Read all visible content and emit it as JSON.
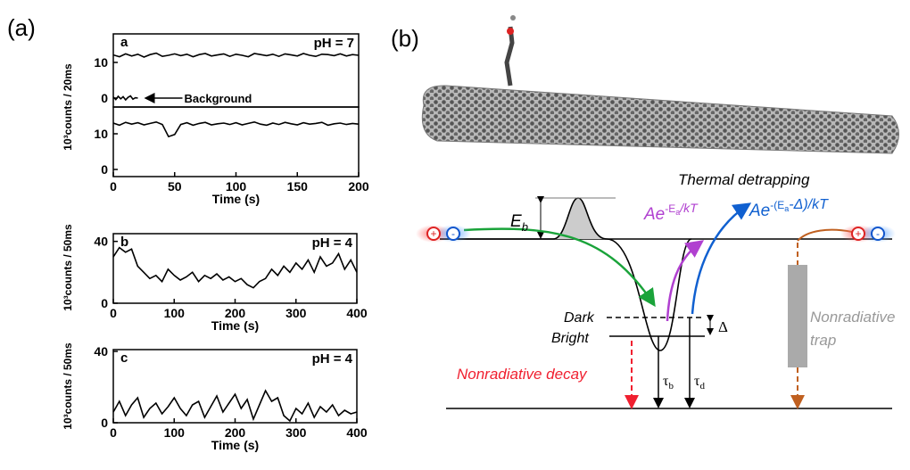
{
  "panel_labels": [
    "(a)",
    "(b)"
  ],
  "chart_data": [
    {
      "type": "line",
      "label": "a",
      "annotation": "pH = 7",
      "ylabel": "10³counts / 20ms",
      "xlim": [
        0,
        200
      ],
      "ylim": [
        -2.5,
        18
      ],
      "yticks": [
        0,
        10
      ],
      "series": [
        {
          "color": "#000000",
          "x": [
            0,
            5,
            10,
            15,
            20,
            25,
            30,
            35,
            40,
            45,
            50,
            55,
            60,
            65,
            70,
            75,
            80,
            85,
            90,
            95,
            100,
            105,
            110,
            115,
            120,
            125,
            130,
            135,
            140,
            145,
            150,
            155,
            160,
            165,
            170,
            175,
            180,
            185,
            190,
            195,
            200
          ],
          "values": [
            12.1,
            11.6,
            12.4,
            11.8,
            12.3,
            11.5,
            12.2,
            12.6,
            11.7,
            12.0,
            12.4,
            11.9,
            12.3,
            11.6,
            12.2,
            12.5,
            11.8,
            12.1,
            12.4,
            11.7,
            12.3,
            12.0,
            11.6,
            12.5,
            12.2,
            11.9,
            12.3,
            11.7,
            12.4,
            12.1,
            11.8,
            12.5,
            12.0,
            11.7,
            12.3,
            12.2,
            11.9,
            12.4,
            11.8,
            12.2,
            12.0
          ]
        },
        {
          "name": "Background",
          "color": "#000000",
          "x": [
            0,
            2,
            4,
            6,
            8,
            10,
            12,
            14,
            16,
            18,
            20
          ],
          "values": [
            0.3,
            -0.4,
            0.5,
            -0.2,
            0.4,
            -0.5,
            0.2,
            0.6,
            -0.3,
            0.1,
            0.0
          ]
        }
      ]
    },
    {
      "type": "line",
      "xlabel": "Time (s)",
      "xlim": [
        0,
        200
      ],
      "ylim": [
        -2,
        17.5
      ],
      "yticks": [
        0,
        10
      ],
      "xticks": [
        0,
        50,
        100,
        150,
        200
      ],
      "series": [
        {
          "color": "#000000",
          "x": [
            0,
            5,
            10,
            15,
            20,
            25,
            30,
            35,
            40,
            45,
            50,
            55,
            60,
            65,
            70,
            75,
            80,
            85,
            90,
            95,
            100,
            105,
            110,
            115,
            120,
            125,
            130,
            135,
            140,
            145,
            150,
            155,
            160,
            165,
            170,
            175,
            180,
            185,
            190,
            195,
            200
          ],
          "values": [
            13.0,
            12.4,
            13.2,
            12.7,
            13.1,
            12.5,
            12.9,
            13.3,
            12.6,
            9.2,
            9.8,
            12.6,
            13.1,
            12.4,
            12.9,
            13.2,
            12.5,
            12.8,
            13.0,
            12.6,
            13.1,
            12.5,
            12.9,
            13.3,
            12.7,
            12.4,
            13.0,
            12.6,
            13.2,
            12.8,
            12.5,
            13.1,
            12.7,
            12.9,
            13.2,
            12.4,
            12.8,
            13.0,
            12.6,
            12.9,
            12.7
          ]
        }
      ]
    },
    {
      "type": "line",
      "label": "b",
      "annotation": "pH = 4",
      "ylabel": "10³counts / 50ms",
      "xlabel": "Time (s)",
      "xlim": [
        0,
        400
      ],
      "ylim": [
        0,
        45
      ],
      "yticks": [
        0,
        40
      ],
      "xticks": [
        0,
        100,
        200,
        300,
        400
      ],
      "series": [
        {
          "color": "#000000",
          "x": [
            0,
            10,
            20,
            30,
            40,
            50,
            60,
            70,
            80,
            90,
            100,
            110,
            120,
            130,
            140,
            150,
            160,
            170,
            180,
            190,
            200,
            210,
            220,
            230,
            240,
            250,
            260,
            270,
            280,
            290,
            300,
            310,
            320,
            330,
            340,
            350,
            360,
            370,
            380,
            390,
            400
          ],
          "values": [
            30,
            36,
            33,
            35,
            24,
            20,
            16,
            18,
            14,
            22,
            18,
            15,
            17,
            20,
            14,
            18,
            16,
            19,
            15,
            17,
            14,
            16,
            12,
            10,
            14,
            16,
            22,
            18,
            24,
            20,
            26,
            22,
            28,
            20,
            30,
            24,
            26,
            32,
            22,
            28,
            20
          ]
        }
      ]
    },
    {
      "type": "line",
      "label": "c",
      "annotation": "pH = 4",
      "ylabel": "10³counts / 50ms",
      "xlabel": "Time (s)",
      "xlim": [
        0,
        400
      ],
      "ylim": [
        0,
        41
      ],
      "yticks": [
        0,
        40
      ],
      "xticks": [
        0,
        100,
        200,
        300,
        400
      ],
      "series": [
        {
          "color": "#000000",
          "x": [
            0,
            10,
            20,
            30,
            40,
            50,
            60,
            70,
            80,
            90,
            100,
            110,
            120,
            130,
            140,
            150,
            160,
            170,
            180,
            190,
            200,
            210,
            220,
            230,
            240,
            250,
            260,
            270,
            280,
            290,
            300,
            310,
            320,
            330,
            340,
            350,
            360,
            370,
            380,
            390,
            400
          ],
          "values": [
            6,
            12,
            4,
            10,
            14,
            3,
            8,
            11,
            5,
            9,
            14,
            8,
            4,
            10,
            12,
            3,
            9,
            15,
            6,
            11,
            16,
            8,
            13,
            2,
            10,
            18,
            12,
            14,
            4,
            1,
            8,
            5,
            11,
            3,
            9,
            6,
            10,
            4,
            7,
            5,
            6
          ]
        }
      ]
    }
  ],
  "diagram": {
    "thermal": "Thermal detrapping",
    "eb": {
      "main": "E",
      "sub": "b"
    },
    "rate1": {
      "base": "Ae",
      "sup1": "-E",
      "sub": "a",
      "sup2": "/kT"
    },
    "rate2": {
      "base": "Ae",
      "sup1": "-(E",
      "sub": "a",
      "sup2": "-Δ)/kT"
    },
    "dark": "Dark",
    "bright": "Bright",
    "delta": "Δ",
    "decay": "Nonradiative decay",
    "taub": {
      "main": "τ",
      "sub": "b"
    },
    "taud": {
      "main": "τ",
      "sub": "d"
    },
    "trap": [
      "Nonradiative",
      "trap"
    ]
  }
}
